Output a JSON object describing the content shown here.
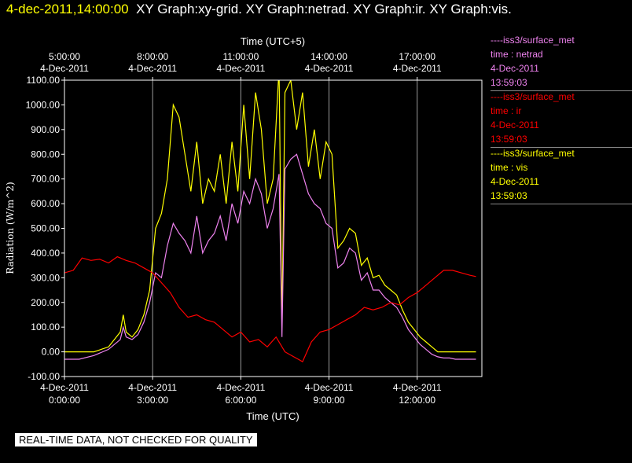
{
  "header": {
    "timestamp": "4-dec-2011,14:00:00",
    "graphs": "XY Graph:xy-grid.  XY Graph:netrad.  XY Graph:ir.  XY Graph:vis."
  },
  "legend": [
    {
      "source": "----iss3/surface_met",
      "var": "time : netrad",
      "date": "4-Dec-2011",
      "time": "13:59:03",
      "color": "#ee82ee"
    },
    {
      "source": "----iss3/surface_met",
      "var": "time : ir",
      "date": "4-Dec-2011",
      "time": "13:59:03",
      "color": "#ff0000"
    },
    {
      "source": "----iss3/surface_met",
      "var": "time : vis",
      "date": "4-Dec-2011",
      "time": "13:59:03",
      "color": "#ffff00"
    }
  ],
  "disclaimer": "REAL-TIME DATA, NOT CHECKED FOR QUALITY",
  "chart_data": {
    "type": "line",
    "ylabel": "Radiation (W/m^2)",
    "xlabel": "Time (UTC)",
    "x2label": "Time (UTC+5)",
    "xlim": [
      0,
      14.2
    ],
    "ylim": [
      -100,
      1100
    ],
    "yticks": [
      "-100.00",
      "0.00",
      "100.00",
      "200.00",
      "300.00",
      "400.00",
      "500.00",
      "600.00",
      "700.00",
      "800.00",
      "900.00",
      "1000.00",
      "1100.00"
    ],
    "xticks_bottom": [
      {
        "h": 0,
        "date": "4-Dec-2011",
        "time": "0:00:00"
      },
      {
        "h": 3,
        "date": "4-Dec-2011",
        "time": "3:00:00"
      },
      {
        "h": 6,
        "date": "4-Dec-2011",
        "time": "6:00:00"
      },
      {
        "h": 9,
        "date": "4-Dec-2011",
        "time": "9:00:00"
      },
      {
        "h": 12,
        "date": "4-Dec-2011",
        "time": "12:00:00"
      }
    ],
    "xticks_top": [
      {
        "h": 0,
        "time": "5:00:00",
        "date": "4-Dec-2011"
      },
      {
        "h": 3,
        "time": "8:00:00",
        "date": "4-Dec-2011"
      },
      {
        "h": 6,
        "time": "11:00:00",
        "date": "4-Dec-2011"
      },
      {
        "h": 9,
        "time": "14:00:00",
        "date": "4-Dec-2011"
      },
      {
        "h": 12,
        "time": "17:00:00",
        "date": "4-Dec-2011"
      }
    ],
    "grid": true,
    "series": [
      {
        "name": "time : vis",
        "color": "#ffff00",
        "x": [
          0,
          0.5,
          1,
          1.5,
          1.9,
          2.0,
          2.1,
          2.3,
          2.5,
          2.7,
          2.9,
          3.1,
          3.3,
          3.5,
          3.7,
          3.9,
          4.1,
          4.3,
          4.5,
          4.7,
          4.9,
          5.1,
          5.3,
          5.5,
          5.7,
          5.9,
          6.1,
          6.3,
          6.5,
          6.7,
          6.9,
          7.1,
          7.3,
          7.4,
          7.5,
          7.7,
          7.9,
          8.1,
          8.3,
          8.5,
          8.7,
          8.9,
          9.1,
          9.3,
          9.5,
          9.7,
          9.9,
          10.1,
          10.3,
          10.5,
          10.7,
          10.9,
          11.1,
          11.3,
          11.5,
          11.7,
          11.9,
          12.1,
          12.3,
          12.5,
          12.7,
          12.9,
          13.1,
          13.3,
          13.5,
          13.7,
          13.9,
          14.0
        ],
        "y": [
          0,
          0,
          0,
          20,
          80,
          150,
          80,
          60,
          90,
          150,
          250,
          500,
          560,
          700,
          1000,
          950,
          800,
          650,
          850,
          600,
          700,
          650,
          800,
          600,
          850,
          650,
          1000,
          700,
          1050,
          900,
          600,
          700,
          1150,
          100,
          1050,
          1100,
          900,
          1050,
          750,
          900,
          700,
          850,
          800,
          420,
          450,
          500,
          480,
          350,
          380,
          300,
          310,
          270,
          250,
          230,
          170,
          120,
          90,
          60,
          40,
          20,
          0,
          0,
          0,
          0,
          0,
          0,
          0,
          0
        ]
      },
      {
        "name": "time : netrad",
        "color": "#ee82ee",
        "x": [
          0,
          0.5,
          1,
          1.5,
          1.9,
          2.0,
          2.1,
          2.3,
          2.5,
          2.7,
          2.9,
          3.1,
          3.3,
          3.5,
          3.7,
          3.9,
          4.1,
          4.3,
          4.5,
          4.7,
          4.9,
          5.1,
          5.3,
          5.5,
          5.7,
          5.9,
          6.1,
          6.3,
          6.5,
          6.7,
          6.9,
          7.1,
          7.3,
          7.4,
          7.5,
          7.7,
          7.9,
          8.1,
          8.3,
          8.5,
          8.7,
          8.9,
          9.1,
          9.3,
          9.5,
          9.7,
          9.9,
          10.1,
          10.3,
          10.5,
          10.7,
          10.9,
          11.1,
          11.3,
          11.5,
          11.7,
          11.9,
          12.1,
          12.3,
          12.5,
          12.7,
          12.9,
          13.1,
          13.3,
          13.5,
          13.7,
          13.9,
          14.0
        ],
        "y": [
          -30,
          -30,
          -15,
          10,
          50,
          100,
          60,
          50,
          70,
          120,
          200,
          320,
          300,
          430,
          520,
          480,
          450,
          400,
          550,
          400,
          450,
          480,
          550,
          450,
          600,
          520,
          650,
          600,
          700,
          640,
          500,
          580,
          720,
          60,
          740,
          780,
          800,
          720,
          640,
          600,
          580,
          520,
          500,
          340,
          360,
          420,
          400,
          290,
          320,
          250,
          250,
          220,
          200,
          180,
          140,
          90,
          60,
          30,
          10,
          -10,
          -20,
          -25,
          -25,
          -30,
          -30,
          -30,
          -30,
          -30
        ]
      },
      {
        "name": "time : ir",
        "color": "#ff0000",
        "x": [
          0,
          0.3,
          0.6,
          0.9,
          1.2,
          1.5,
          1.8,
          2.1,
          2.4,
          2.7,
          3.0,
          3.3,
          3.6,
          3.9,
          4.2,
          4.5,
          4.8,
          5.1,
          5.4,
          5.7,
          6.0,
          6.3,
          6.6,
          6.9,
          7.2,
          7.5,
          7.8,
          8.1,
          8.4,
          8.7,
          9.0,
          9.3,
          9.6,
          9.9,
          10.2,
          10.5,
          10.8,
          11.1,
          11.4,
          11.7,
          12.0,
          12.3,
          12.6,
          12.9,
          13.2,
          13.5,
          13.8,
          14.0
        ],
        "y": [
          320,
          330,
          380,
          370,
          375,
          360,
          385,
          370,
          360,
          340,
          320,
          280,
          240,
          180,
          140,
          150,
          130,
          120,
          90,
          60,
          80,
          40,
          50,
          20,
          60,
          0,
          -20,
          -40,
          40,
          80,
          90,
          110,
          130,
          150,
          180,
          170,
          180,
          200,
          190,
          220,
          240,
          270,
          300,
          330,
          330,
          320,
          310,
          305
        ]
      }
    ]
  }
}
